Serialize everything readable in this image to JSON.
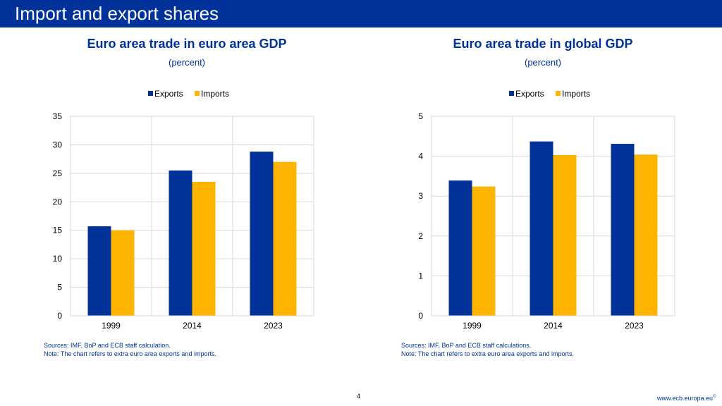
{
  "header": {
    "title": "Import and export shares"
  },
  "chart_data": [
    {
      "type": "bar",
      "title": "Euro area trade in euro area GDP",
      "subtitle": "(percent)",
      "categories": [
        "1999",
        "2014",
        "2023"
      ],
      "series": [
        {
          "name": "Exports",
          "values": [
            15.7,
            25.5,
            28.8
          ]
        },
        {
          "name": "Imports",
          "values": [
            15.0,
            23.5,
            27.0
          ]
        }
      ],
      "ylim": [
        0,
        35
      ],
      "yticks": [
        0,
        5,
        10,
        15,
        20,
        25,
        30,
        35
      ],
      "xlabel": "",
      "ylabel": "",
      "legend": "top-center",
      "grid": true,
      "colors": [
        "#003299",
        "#FFB400"
      ],
      "sources": "Sources: IMF, BoP and ECB staff calculation.",
      "note": "Note: The chart refers to extra euro area exports and imports."
    },
    {
      "type": "bar",
      "title": "Euro area trade in global GDP",
      "subtitle": "(percent)",
      "categories": [
        "1999",
        "2014",
        "2023"
      ],
      "series": [
        {
          "name": "Exports",
          "values": [
            3.39,
            4.37,
            4.31
          ]
        },
        {
          "name": "Imports",
          "values": [
            3.24,
            4.03,
            4.04
          ]
        }
      ],
      "ylim": [
        0,
        5
      ],
      "yticks": [
        0,
        1,
        2,
        3,
        4,
        5
      ],
      "xlabel": "",
      "ylabel": "",
      "legend": "top-center",
      "grid": true,
      "colors": [
        "#003299",
        "#FFB400"
      ],
      "sources": "Sources: IMF, BoP and ECB staff calculations.",
      "note": "Note: The chart refers to extra euro area exports and imports."
    }
  ],
  "footer": {
    "page_number": "4",
    "url": "www.ecb.europa.eu",
    "url_mark": "©"
  }
}
